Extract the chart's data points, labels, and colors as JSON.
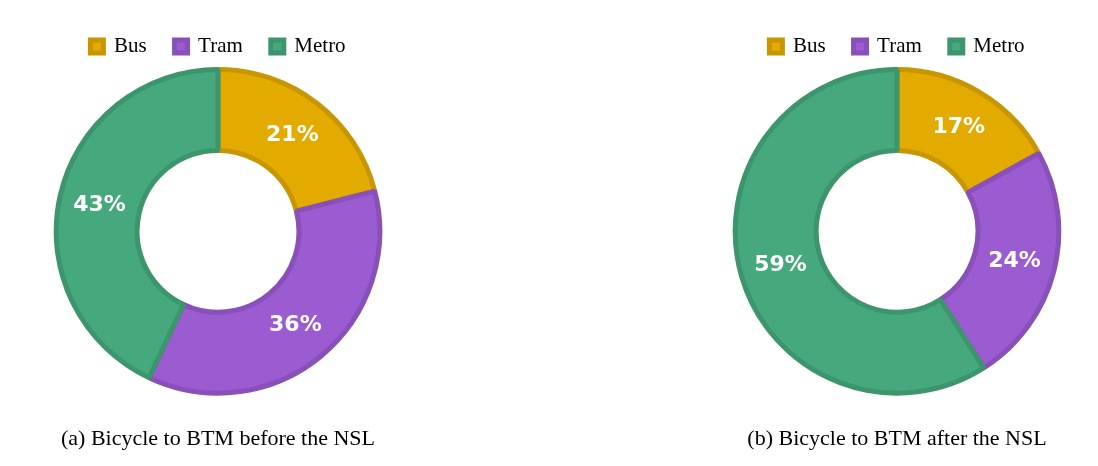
{
  "chart_data": [
    {
      "type": "donut",
      "title": "(a) Bicycle to BTM before the NSL",
      "categories": [
        "Bus",
        "Tram",
        "Metro"
      ],
      "values": [
        21,
        36,
        43
      ],
      "colors": [
        "#e3ab00",
        "#9b5bd1",
        "#45a97d"
      ],
      "value_labels": [
        "21%",
        "36%",
        "43%"
      ],
      "legend": "top"
    },
    {
      "type": "donut",
      "title": "(b) Bicycle to BTM after the NSL",
      "categories": [
        "Bus",
        "Tram",
        "Metro"
      ],
      "values": [
        17,
        24,
        59
      ],
      "colors": [
        "#e3ab00",
        "#9b5bd1",
        "#45a97d"
      ],
      "value_labels": [
        "17%",
        "24%",
        "59%"
      ],
      "legend": "top"
    }
  ]
}
